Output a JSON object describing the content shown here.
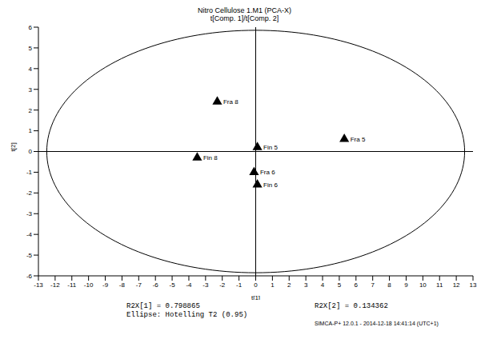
{
  "chart_data": {
    "type": "scatter",
    "title": "Nitro Cellulose 1.M1 (PCA-X)",
    "subtitle": "t[Comp. 1]/t[Comp. 2]",
    "x_label": "t[1]",
    "y_label": "t[2]",
    "points": [
      {
        "label": "Fra 8",
        "x": -2.3,
        "y": 2.4
      },
      {
        "label": "Fin 5",
        "x": 0.1,
        "y": 0.2
      },
      {
        "label": "Fra 5",
        "x": 5.3,
        "y": 0.6
      },
      {
        "label": "Fin 8",
        "x": -3.5,
        "y": -0.3
      },
      {
        "label": "Fra 6",
        "x": -0.1,
        "y": -1.0
      },
      {
        "label": "Fin 6",
        "x": 0.1,
        "y": -1.6
      }
    ],
    "xlim": [
      -13,
      13
    ],
    "xticks": [
      -13,
      -12,
      -11,
      -10,
      -9,
      -8,
      -7,
      -6,
      -5,
      -4,
      -3,
      -2,
      -1,
      0,
      1,
      2,
      3,
      4,
      5,
      6,
      7,
      8,
      9,
      10,
      11,
      12,
      13
    ],
    "ylim": [
      -6,
      6
    ],
    "yticks": [
      -6,
      -5,
      -4,
      -3,
      -2,
      -1,
      0,
      1,
      2,
      3,
      4,
      5,
      6
    ],
    "color": "#000000",
    "marker": "triangle",
    "ellipse": {
      "center": [
        0,
        0
      ],
      "x_radius": 12.5,
      "y_radius": 5.85
    },
    "notes": [
      "R2X[1] = 0.798865",
      "R2X[2] = 0.134362",
      "Ellipse: Hotelling T2 (0.95)",
      "SIMCA-P+ 12.0.1 - 2014-12-18 14:41:14 (UTC+1)"
    ]
  }
}
